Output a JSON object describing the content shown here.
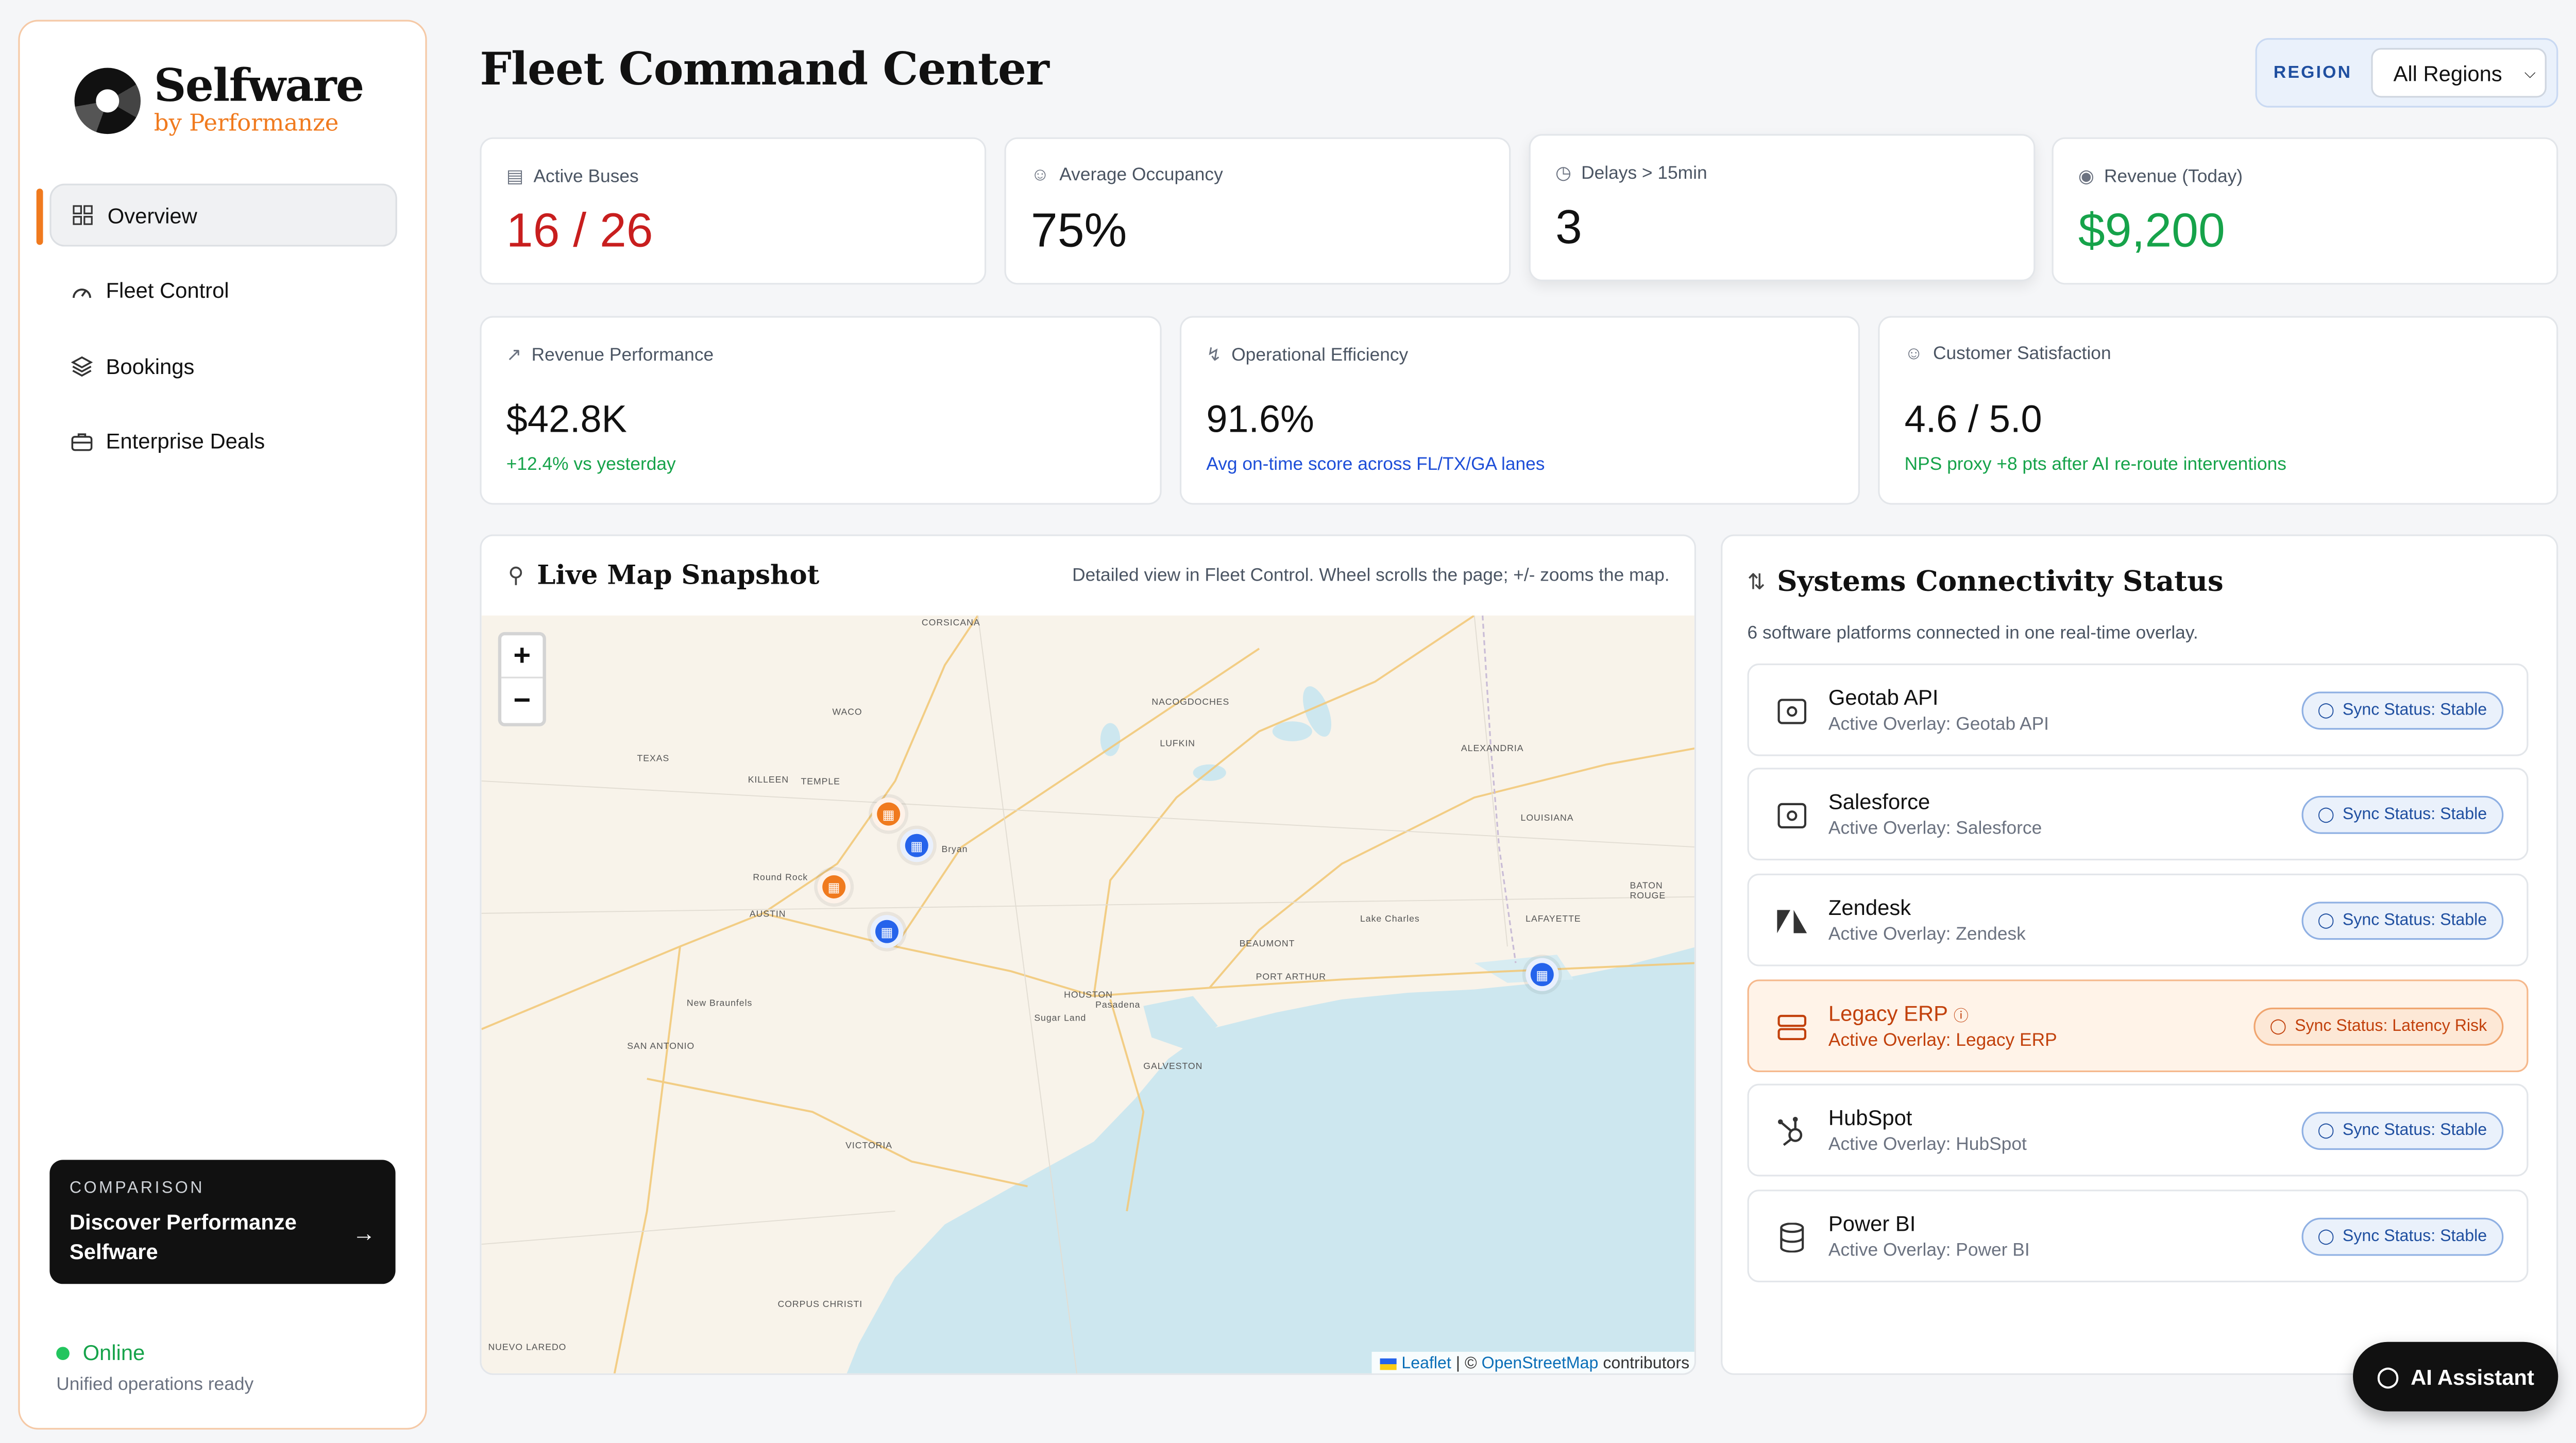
{
  "brand": {
    "name": "Selfware",
    "by": "by Performanze"
  },
  "sidebar": {
    "items": [
      {
        "label": "Overview",
        "icon": "grid-icon"
      },
      {
        "label": "Fleet Control",
        "icon": "gauge-icon"
      },
      {
        "label": "Bookings",
        "icon": "layers-icon"
      },
      {
        "label": "Enterprise Deals",
        "icon": "briefcase-icon"
      }
    ],
    "promo": {
      "kicker": "COMPARISON",
      "title": "Discover Performanze Selfware"
    },
    "status": {
      "label": "Online",
      "sub": "Unified operations ready"
    }
  },
  "header": {
    "title": "Fleet Command Center",
    "region_label": "REGION",
    "region_value": "All Regions"
  },
  "kpis": [
    {
      "label": "Active Buses",
      "value": "16 / 26",
      "color": "#c81e1e",
      "icon": "bus-icon"
    },
    {
      "label": "Average Occupancy",
      "value": "75%",
      "color": "#111111",
      "icon": "users-icon"
    },
    {
      "label": "Delays > 15min",
      "value": "3",
      "color": "#111111",
      "icon": "clock-icon"
    },
    {
      "label": "Revenue (Today)",
      "value": "$9,200",
      "color": "#16a34a",
      "icon": "dollar-icon"
    }
  ],
  "metrics": [
    {
      "label": "Revenue Performance",
      "value": "$42.8K",
      "sub": "+12.4% vs yesterday",
      "sub_color": "#16a34a",
      "icon": "trend-icon"
    },
    {
      "label": "Operational Efficiency",
      "value": "91.6%",
      "sub": "Avg on-time score across FL/TX/GA lanes",
      "sub_color": "#1d4ed8",
      "icon": "bolt-icon"
    },
    {
      "label": "Customer Satisfaction",
      "value": "4.6 / 5.0",
      "sub": "NPS proxy +8 pts after AI re-route interventions",
      "sub_color": "#16a34a",
      "icon": "smile-icon"
    }
  ],
  "map": {
    "title": "Live Map Snapshot",
    "note": "Detailed view in Fleet Control. Wheel scrolls the page; +/- zooms the map.",
    "zoom_in": "+",
    "zoom_out": "−",
    "attribution": {
      "leaflet": "Leaflet",
      "sep": " | © ",
      "osm": "OpenStreetMap",
      "tail": " contributors"
    },
    "cities": [
      "CORSICANA",
      "WACO",
      "NACOGDOCHES",
      "TEXAS",
      "KILLEEN",
      "TEMPLE",
      "LUFKIN",
      "ALEXANDRIA",
      "LOUISIANA",
      "Bryan",
      "Round Rock",
      "AUSTIN",
      "BATON ROUGE",
      "Lake Charles",
      "LAFAYETTE",
      "BEAUMONT",
      "PORT ARTHUR",
      "HOUSTON",
      "Pasadena",
      "New Braunfels",
      "Sugar Land",
      "SAN ANTONIO",
      "GALVESTON",
      "VICTORIA",
      "CORPUS CHRISTI",
      "NUEVO LAREDO"
    ]
  },
  "systems": {
    "title": "Systems Connectivity Status",
    "subtitle": "6 software platforms connected in one real-time overlay.",
    "rows": [
      {
        "name": "Geotab API",
        "overlay": "Active Overlay: Geotab API",
        "status": "Sync Status: Stable",
        "icon": "api-icon"
      },
      {
        "name": "Salesforce",
        "overlay": "Active Overlay: Salesforce",
        "status": "Sync Status: Stable",
        "icon": "api-icon"
      },
      {
        "name": "Zendesk",
        "overlay": "Active Overlay: Zendesk",
        "status": "Sync Status: Stable",
        "icon": "zendesk-icon"
      },
      {
        "name": "Legacy ERP",
        "overlay": "Active Overlay: Legacy ERP",
        "status": "Sync Status: Latency Risk",
        "icon": "server-icon"
      },
      {
        "name": "HubSpot",
        "overlay": "Active Overlay: HubSpot",
        "status": "Sync Status: Stable",
        "icon": "hubspot-icon"
      },
      {
        "name": "Power BI",
        "overlay": "Active Overlay: Power BI",
        "status": "Sync Status: Stable",
        "icon": "database-icon"
      }
    ]
  },
  "ai_button": "AI Assistant"
}
